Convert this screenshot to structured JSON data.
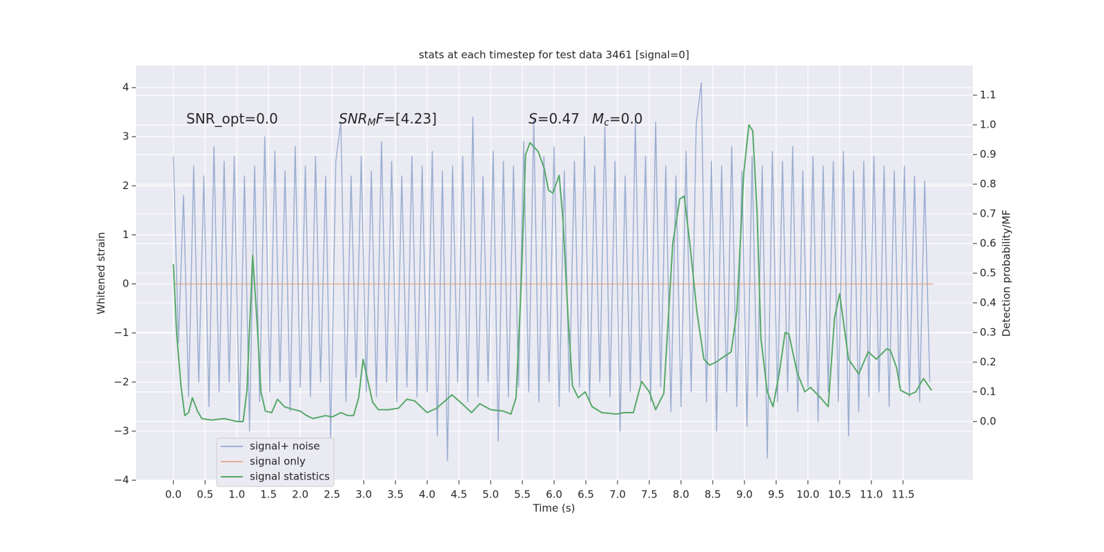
{
  "chart_data": {
    "type": "line",
    "title": "stats at each timestep for test data 3461 [signal=0]",
    "xlabel": "Time (s)",
    "ylabel": "Whitened strain",
    "y2label": "Detection probability/MF",
    "grid": true,
    "legend": "lower left",
    "xlim": [
      -0.59,
      12.6
    ],
    "ylim": [
      -4,
      4.45
    ],
    "y2lim": [
      -0.198,
      1.2
    ],
    "xticks": [
      {
        "value": 0,
        "label": "0.0"
      },
      0.5,
      {
        "value": 1,
        "label": "1.0"
      },
      1.5,
      {
        "value": 2,
        "label": "2.0"
      },
      2.5,
      {
        "value": 3,
        "label": "3.0"
      },
      3.5,
      {
        "value": 4,
        "label": "4.0"
      },
      4.5,
      {
        "value": 5,
        "label": "5.0"
      },
      5.5,
      {
        "value": 6,
        "label": "6.0"
      },
      6.5,
      {
        "value": 7,
        "label": "7.0"
      },
      7.5,
      {
        "value": 8,
        "label": "8.0"
      },
      8.5,
      {
        "value": 9,
        "label": "9.0"
      },
      9.5,
      {
        "value": 10,
        "label": "10.0"
      },
      10.5,
      {
        "value": 11,
        "label": "11.0"
      },
      11.5
    ],
    "yticks": [
      {
        "value": -4,
        "label": "−4"
      },
      {
        "value": -3,
        "label": "−3"
      },
      {
        "value": -2,
        "label": "−2"
      },
      {
        "value": -1,
        "label": "−1"
      },
      0,
      1,
      2,
      3,
      4
    ],
    "y2ticks": [
      {
        "value": 0,
        "label": "0.0"
      },
      0.1,
      0.2,
      0.3,
      0.4,
      0.5,
      0.6,
      0.7,
      0.8,
      0.9,
      {
        "value": 1,
        "label": "1.0"
      },
      1.1
    ],
    "annotations": [
      [
        {
          "text": "SNR_opt=0.0",
          "style": "normal"
        }
      ],
      [
        {
          "text": "SNR",
          "style": "italic"
        },
        {
          "text": "M",
          "style": "sub"
        },
        {
          "text": "F",
          "style": "italic"
        },
        {
          "text": "=[4.23]",
          "style": "normal"
        }
      ],
      [
        {
          "text": "S",
          "style": "italic"
        },
        {
          "text": "=0.47",
          "style": "normal"
        }
      ],
      [
        {
          "text": "M",
          "style": "italic"
        },
        {
          "text": "c",
          "style": "sub"
        },
        {
          "text": "=0.0",
          "style": "normal"
        }
      ]
    ],
    "series": [
      {
        "name": "signal+ noise",
        "color": "#4c72b0",
        "opacity": 0.5,
        "axis": "y",
        "x": [
          0,
          0.08,
          0.16,
          0.24,
          0.32,
          0.4,
          0.48,
          0.56,
          0.64,
          0.72,
          0.8,
          0.88,
          0.96,
          1.04,
          1.12,
          1.2,
          1.28,
          1.36,
          1.44,
          1.52,
          1.6,
          1.68,
          1.76,
          1.84,
          1.92,
          2,
          2.08,
          2.16,
          2.24,
          2.32,
          2.4,
          2.48,
          2.56,
          2.64,
          2.72,
          2.8,
          2.88,
          2.96,
          3.04,
          3.12,
          3.2,
          3.28,
          3.36,
          3.44,
          3.52,
          3.6,
          3.68,
          3.76,
          3.84,
          3.92,
          4,
          4.08,
          4.16,
          4.24,
          4.32,
          4.4,
          4.48,
          4.56,
          4.64,
          4.72,
          4.8,
          4.88,
          4.96,
          5.04,
          5.12,
          5.2,
          5.28,
          5.36,
          5.44,
          5.52,
          5.6,
          5.68,
          5.76,
          5.84,
          5.92,
          6,
          6.08,
          6.16,
          6.24,
          6.32,
          6.4,
          6.48,
          6.56,
          6.64,
          6.72,
          6.8,
          6.88,
          6.96,
          7.04,
          7.12,
          7.2,
          7.28,
          7.36,
          7.44,
          7.52,
          7.6,
          7.68,
          7.76,
          7.84,
          7.92,
          8,
          8.08,
          8.16,
          8.24,
          8.32,
          8.4,
          8.48,
          8.56,
          8.64,
          8.72,
          8.8,
          8.88,
          8.96,
          9.04,
          9.12,
          9.2,
          9.28,
          9.36,
          9.44,
          9.52,
          9.6,
          9.68,
          9.76,
          9.84,
          9.92,
          10,
          10.08,
          10.16,
          10.24,
          10.32,
          10.4,
          10.48,
          10.56,
          10.64,
          10.72,
          10.8,
          10.88,
          10.96,
          11.04,
          11.12,
          11.2,
          11.28,
          11.36,
          11.44,
          11.52,
          11.6,
          11.68,
          11.76,
          11.84,
          11.92
        ],
        "values": [
          2.6,
          -1.2,
          1.8,
          -2.3,
          2.4,
          -2,
          2.2,
          -2.5,
          2.8,
          -2.2,
          2.5,
          -2,
          2.6,
          -2.8,
          2.2,
          -3,
          2.4,
          -2.4,
          3,
          -2.2,
          2.7,
          -2,
          2.3,
          -2.6,
          2.8,
          -2.1,
          2.4,
          -2.3,
          2.6,
          -2,
          2.2,
          -3.2,
          2.5,
          3.3,
          -2.4,
          2.2,
          -1.9,
          2.6,
          -2.2,
          2.3,
          -2.3,
          2.9,
          -2,
          2.5,
          -2.4,
          2.2,
          -2.1,
          2.6,
          -2.3,
          2.4,
          -2.2,
          2.7,
          -3.1,
          2.3,
          -3.6,
          2.4,
          -2,
          2.6,
          -2.4,
          3.4,
          -2.3,
          2.2,
          -2,
          2.7,
          -3.2,
          2.5,
          -2.3,
          2.4,
          -2.1,
          2.9,
          -2.2,
          3.35,
          -2.4,
          2.6,
          -2,
          2.8,
          -2.5,
          2.3,
          -2.2,
          2.5,
          -2.1,
          3,
          -2.4,
          2.4,
          -2,
          3.2,
          -2.3,
          2.5,
          -3,
          2.2,
          -2.2,
          3.3,
          -2,
          2.6,
          -2.4,
          3.3,
          -2.1,
          2.4,
          -2.6,
          2.2,
          -2.5,
          2.7,
          -2.2,
          3.25,
          4.1,
          -2.4,
          2.5,
          -3,
          2.4,
          -2.2,
          2.8,
          -2.5,
          2.3,
          -2.9,
          2.6,
          -2.3,
          2.4,
          -3.55,
          2.7,
          -2.4,
          2.5,
          -2.2,
          2.8,
          -2.6,
          2.3,
          -2.1,
          2.6,
          -2.8,
          2.4,
          -2.2,
          2.5,
          -2.4,
          2.7,
          -3.1,
          2.3,
          -2.6,
          2.5,
          -2.3,
          2.6,
          -2.2,
          2.4,
          -2.5,
          2.3,
          -2.1,
          2.4,
          -2.3,
          2.2,
          -2.4,
          2.1,
          -2
        ]
      },
      {
        "name": "signal only",
        "color": "#dd8452",
        "opacity": 0.6,
        "axis": "y",
        "x": [
          0,
          11.98
        ],
        "values": [
          0,
          0
        ]
      },
      {
        "name": "signal statistics",
        "color": "#55a868",
        "opacity": 1,
        "axis": "y2",
        "x": [
          0,
          0.05,
          0.12,
          0.18,
          0.24,
          0.3,
          0.38,
          0.45,
          0.6,
          0.8,
          0.9,
          1,
          1.1,
          1.16,
          1.25,
          1.32,
          1.38,
          1.45,
          1.55,
          1.64,
          1.75,
          1.9,
          2,
          2.1,
          2.2,
          2.4,
          2.5,
          2.64,
          2.75,
          2.84,
          2.92,
          2.99,
          3.14,
          3.23,
          3.4,
          3.55,
          3.68,
          3.8,
          4,
          4.15,
          4.39,
          4.55,
          4.7,
          4.83,
          5,
          5.2,
          5.32,
          5.4,
          5.48,
          5.55,
          5.62,
          5.75,
          5.85,
          5.91,
          5.98,
          6.08,
          6.14,
          6.22,
          6.29,
          6.38,
          6.49,
          6.6,
          6.75,
          6.98,
          7.1,
          7.25,
          7.38,
          7.5,
          7.6,
          7.73,
          7.87,
          7.98,
          8.05,
          8.14,
          8.25,
          8.36,
          8.45,
          8.55,
          8.79,
          8.88,
          8.99,
          9.07,
          9.13,
          9.2,
          9.26,
          9.36,
          9.45,
          9.55,
          9.64,
          9.7,
          9.83,
          9.95,
          10.04,
          10.2,
          10.32,
          10.42,
          10.5,
          10.64,
          10.8,
          10.95,
          11.08,
          11.24,
          11.3,
          11.4,
          11.46,
          11.6,
          11.7,
          11.82,
          11.95
        ],
        "values": [
          0.53,
          0.3,
          0.12,
          0.02,
          0.03,
          0.08,
          0.035,
          0.01,
          0.005,
          0.01,
          0.005,
          0,
          0,
          0.105,
          0.56,
          0.33,
          0.1,
          0.035,
          0.03,
          0.075,
          0.05,
          0.04,
          0.035,
          0.02,
          0.01,
          0.02,
          0.015,
          0.03,
          0.02,
          0.02,
          0.08,
          0.21,
          0.065,
          0.04,
          0.04,
          0.045,
          0.075,
          0.07,
          0.03,
          0.045,
          0.09,
          0.06,
          0.03,
          0.06,
          0.04,
          0.035,
          0.025,
          0.08,
          0.45,
          0.9,
          0.94,
          0.91,
          0.85,
          0.78,
          0.77,
          0.83,
          0.68,
          0.35,
          0.12,
          0.08,
          0.1,
          0.05,
          0.03,
          0.025,
          0.03,
          0.03,
          0.135,
          0.1,
          0.04,
          0.095,
          0.6,
          0.75,
          0.76,
          0.6,
          0.37,
          0.21,
          0.19,
          0.2,
          0.235,
          0.37,
          0.84,
          1,
          0.98,
          0.7,
          0.28,
          0.1,
          0.05,
          0.165,
          0.3,
          0.295,
          0.165,
          0.1,
          0.115,
          0.08,
          0.05,
          0.35,
          0.43,
          0.21,
          0.16,
          0.235,
          0.21,
          0.245,
          0.24,
          0.18,
          0.105,
          0.09,
          0.1,
          0.145,
          0.105
        ]
      }
    ]
  }
}
